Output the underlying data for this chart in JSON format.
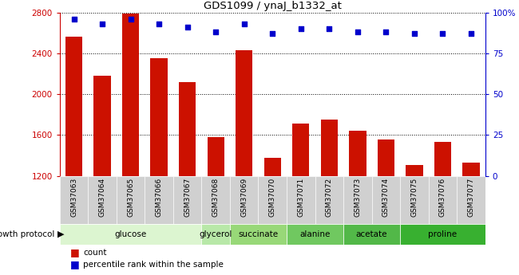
{
  "title": "GDS1099 / ynaJ_b1332_at",
  "samples": [
    "GSM37063",
    "GSM37064",
    "GSM37065",
    "GSM37066",
    "GSM37067",
    "GSM37068",
    "GSM37069",
    "GSM37070",
    "GSM37071",
    "GSM37072",
    "GSM37073",
    "GSM37074",
    "GSM37075",
    "GSM37076",
    "GSM37077"
  ],
  "counts": [
    2560,
    2180,
    2790,
    2350,
    2120,
    1580,
    2430,
    1380,
    1710,
    1750,
    1640,
    1560,
    1310,
    1530,
    1330
  ],
  "percentiles": [
    96,
    93,
    96,
    93,
    91,
    88,
    93,
    87,
    90,
    90,
    88,
    88,
    87,
    87,
    87
  ],
  "ylim_left": [
    1200,
    2800
  ],
  "ylim_right": [
    0,
    100
  ],
  "yticks_left": [
    1200,
    1600,
    2000,
    2400,
    2800
  ],
  "yticks_right": [
    0,
    25,
    50,
    75,
    100
  ],
  "ytick_labels_right": [
    "0",
    "25",
    "50",
    "75",
    "100%"
  ],
  "group_defs": [
    {
      "label": "glucose",
      "start": 0,
      "end": 5,
      "color": "#dcf5d0"
    },
    {
      "label": "glycerol",
      "start": 5,
      "end": 6,
      "color": "#b8e8a8"
    },
    {
      "label": "succinate",
      "start": 6,
      "end": 8,
      "color": "#98d878"
    },
    {
      "label": "alanine",
      "start": 8,
      "end": 10,
      "color": "#70c860"
    },
    {
      "label": "acetate",
      "start": 10,
      "end": 12,
      "color": "#52b848"
    },
    {
      "label": "proline",
      "start": 12,
      "end": 15,
      "color": "#38b030"
    }
  ],
  "bar_color": "#cc1100",
  "dot_color": "#0000cc",
  "bar_width": 0.6,
  "bg_color": "#ffffff",
  "axis_color_left": "#cc0000",
  "axis_color_right": "#0000cc",
  "growth_protocol_label": "growth protocol",
  "legend_count_label": "count",
  "legend_pct_label": "percentile rank within the sample",
  "sample_bg_color": "#d0d0d0"
}
